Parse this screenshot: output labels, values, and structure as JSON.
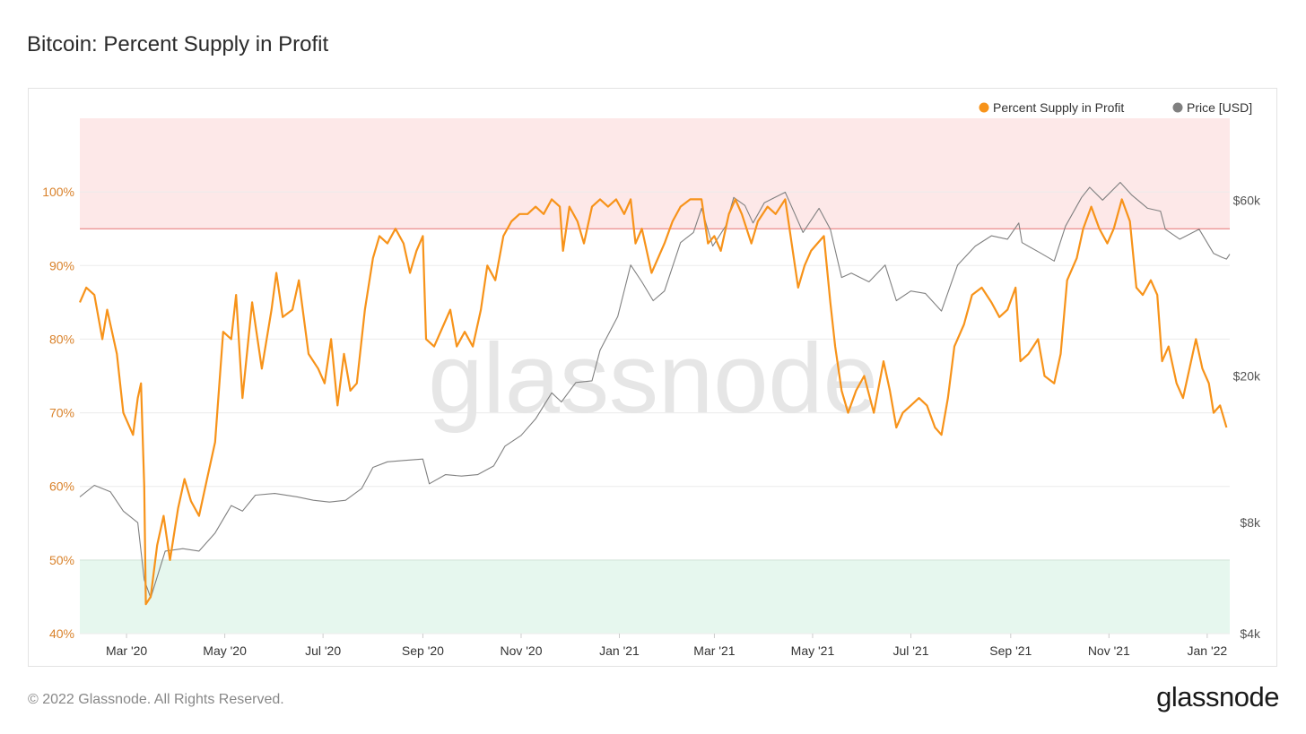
{
  "header": {
    "title": "Bitcoin: Percent Supply in Profit"
  },
  "footer": {
    "copyright": "© 2022 Glassnode. All Rights Reserved.",
    "logo_text": "glassnode"
  },
  "watermark": "glassnode",
  "colors": {
    "supply": "#f7931a",
    "price": "#808080",
    "upper_zone": "#fde8e8",
    "upper_line": "#e57373",
    "lower_zone": "#e6f7ee",
    "lower_line": "#66c28f"
  },
  "chart_data": {
    "type": "line",
    "title": "Bitcoin: Percent Supply in Profit",
    "legend": {
      "placement": "top-right",
      "entries": [
        "Percent Supply in Profit",
        "Price [USD]"
      ]
    },
    "x_range": [
      "2020-02-01",
      "2022-01-15"
    ],
    "x_ticks": [
      {
        "date": "2020-03-01",
        "label": "Mar '20"
      },
      {
        "date": "2020-05-01",
        "label": "May '20"
      },
      {
        "date": "2020-07-01",
        "label": "Jul '20"
      },
      {
        "date": "2020-09-01",
        "label": "Sep '20"
      },
      {
        "date": "2020-11-01",
        "label": "Nov '20"
      },
      {
        "date": "2021-01-01",
        "label": "Jan '21"
      },
      {
        "date": "2021-03-01",
        "label": "Mar '21"
      },
      {
        "date": "2021-05-01",
        "label": "May '21"
      },
      {
        "date": "2021-07-01",
        "label": "Jul '21"
      },
      {
        "date": "2021-09-01",
        "label": "Sep '21"
      },
      {
        "date": "2021-11-01",
        "label": "Nov '21"
      },
      {
        "date": "2022-01-01",
        "label": "Jan '22"
      }
    ],
    "y_left": {
      "range": [
        40,
        110
      ],
      "ticks": [
        40,
        50,
        60,
        70,
        80,
        90,
        100
      ],
      "tick_labels": [
        "40%",
        "50%",
        "60%",
        "70%",
        "80%",
        "90%",
        "100%"
      ]
    },
    "y_right": {
      "scale": "log",
      "range": [
        4000,
        100000
      ],
      "ticks": [
        4000,
        8000,
        20000,
        60000
      ],
      "tick_labels": [
        "$4k",
        "$8k",
        "$20k",
        "$60k"
      ]
    },
    "bands": [
      {
        "name": "upper",
        "from": 95,
        "to": 110
      },
      {
        "name": "lower",
        "from": 40,
        "to": 50
      }
    ],
    "grid": true,
    "series": [
      {
        "name": "Percent Supply in Profit",
        "axis": "left",
        "points": [
          [
            "2020-02-01",
            85
          ],
          [
            "2020-02-05",
            87
          ],
          [
            "2020-02-10",
            86
          ],
          [
            "2020-02-15",
            80
          ],
          [
            "2020-02-18",
            84
          ],
          [
            "2020-02-24",
            78
          ],
          [
            "2020-02-28",
            70
          ],
          [
            "2020-03-05",
            67
          ],
          [
            "2020-03-08",
            72
          ],
          [
            "2020-03-10",
            74
          ],
          [
            "2020-03-12",
            60
          ],
          [
            "2020-03-13",
            44
          ],
          [
            "2020-03-16",
            45
          ],
          [
            "2020-03-20",
            52
          ],
          [
            "2020-03-24",
            56
          ],
          [
            "2020-03-28",
            50
          ],
          [
            "2020-04-02",
            57
          ],
          [
            "2020-04-06",
            61
          ],
          [
            "2020-04-10",
            58
          ],
          [
            "2020-04-15",
            56
          ],
          [
            "2020-04-20",
            61
          ],
          [
            "2020-04-25",
            66
          ],
          [
            "2020-04-30",
            81
          ],
          [
            "2020-05-05",
            80
          ],
          [
            "2020-05-08",
            86
          ],
          [
            "2020-05-12",
            72
          ],
          [
            "2020-05-18",
            85
          ],
          [
            "2020-05-24",
            76
          ],
          [
            "2020-05-30",
            84
          ],
          [
            "2020-06-02",
            89
          ],
          [
            "2020-06-06",
            83
          ],
          [
            "2020-06-12",
            84
          ],
          [
            "2020-06-16",
            88
          ],
          [
            "2020-06-22",
            78
          ],
          [
            "2020-06-28",
            76
          ],
          [
            "2020-07-02",
            74
          ],
          [
            "2020-07-06",
            80
          ],
          [
            "2020-07-10",
            71
          ],
          [
            "2020-07-14",
            78
          ],
          [
            "2020-07-18",
            73
          ],
          [
            "2020-07-22",
            74
          ],
          [
            "2020-07-27",
            84
          ],
          [
            "2020-08-01",
            91
          ],
          [
            "2020-08-05",
            94
          ],
          [
            "2020-08-10",
            93
          ],
          [
            "2020-08-15",
            95
          ],
          [
            "2020-08-20",
            93
          ],
          [
            "2020-08-24",
            89
          ],
          [
            "2020-08-28",
            92
          ],
          [
            "2020-09-01",
            94
          ],
          [
            "2020-09-03",
            80
          ],
          [
            "2020-09-08",
            79
          ],
          [
            "2020-09-14",
            82
          ],
          [
            "2020-09-18",
            84
          ],
          [
            "2020-09-22",
            79
          ],
          [
            "2020-09-27",
            81
          ],
          [
            "2020-10-02",
            79
          ],
          [
            "2020-10-07",
            84
          ],
          [
            "2020-10-11",
            90
          ],
          [
            "2020-10-16",
            88
          ],
          [
            "2020-10-21",
            94
          ],
          [
            "2020-10-26",
            96
          ],
          [
            "2020-10-31",
            97
          ],
          [
            "2020-11-05",
            97
          ],
          [
            "2020-11-10",
            98
          ],
          [
            "2020-11-15",
            97
          ],
          [
            "2020-11-20",
            99
          ],
          [
            "2020-11-25",
            98
          ],
          [
            "2020-11-27",
            92
          ],
          [
            "2020-12-01",
            98
          ],
          [
            "2020-12-06",
            96
          ],
          [
            "2020-12-10",
            93
          ],
          [
            "2020-12-15",
            98
          ],
          [
            "2020-12-20",
            99
          ],
          [
            "2020-12-25",
            98
          ],
          [
            "2020-12-30",
            99
          ],
          [
            "2021-01-04",
            97
          ],
          [
            "2021-01-08",
            99
          ],
          [
            "2021-01-11",
            93
          ],
          [
            "2021-01-15",
            95
          ],
          [
            "2021-01-21",
            89
          ],
          [
            "2021-01-25",
            91
          ],
          [
            "2021-01-29",
            93
          ],
          [
            "2021-02-03",
            96
          ],
          [
            "2021-02-08",
            98
          ],
          [
            "2021-02-14",
            99
          ],
          [
            "2021-02-21",
            99
          ],
          [
            "2021-02-25",
            93
          ],
          [
            "2021-03-01",
            94
          ],
          [
            "2021-03-05",
            92
          ],
          [
            "2021-03-10",
            97
          ],
          [
            "2021-03-14",
            99
          ],
          [
            "2021-03-18",
            97
          ],
          [
            "2021-03-24",
            93
          ],
          [
            "2021-03-28",
            96
          ],
          [
            "2021-04-03",
            98
          ],
          [
            "2021-04-08",
            97
          ],
          [
            "2021-04-14",
            99
          ],
          [
            "2021-04-18",
            93
          ],
          [
            "2021-04-22",
            87
          ],
          [
            "2021-04-26",
            90
          ],
          [
            "2021-04-30",
            92
          ],
          [
            "2021-05-04",
            93
          ],
          [
            "2021-05-08",
            94
          ],
          [
            "2021-05-12",
            85
          ],
          [
            "2021-05-15",
            79
          ],
          [
            "2021-05-19",
            73
          ],
          [
            "2021-05-23",
            70
          ],
          [
            "2021-05-28",
            73
          ],
          [
            "2021-06-02",
            75
          ],
          [
            "2021-06-08",
            70
          ],
          [
            "2021-06-14",
            77
          ],
          [
            "2021-06-18",
            73
          ],
          [
            "2021-06-22",
            68
          ],
          [
            "2021-06-26",
            70
          ],
          [
            "2021-07-01",
            71
          ],
          [
            "2021-07-06",
            72
          ],
          [
            "2021-07-11",
            71
          ],
          [
            "2021-07-16",
            68
          ],
          [
            "2021-07-20",
            67
          ],
          [
            "2021-07-24",
            72
          ],
          [
            "2021-07-28",
            79
          ],
          [
            "2021-08-03",
            82
          ],
          [
            "2021-08-08",
            86
          ],
          [
            "2021-08-14",
            87
          ],
          [
            "2021-08-20",
            85
          ],
          [
            "2021-08-25",
            83
          ],
          [
            "2021-08-30",
            84
          ],
          [
            "2021-09-04",
            87
          ],
          [
            "2021-09-07",
            77
          ],
          [
            "2021-09-12",
            78
          ],
          [
            "2021-09-18",
            80
          ],
          [
            "2021-09-22",
            75
          ],
          [
            "2021-09-28",
            74
          ],
          [
            "2021-10-02",
            78
          ],
          [
            "2021-10-06",
            88
          ],
          [
            "2021-10-12",
            91
          ],
          [
            "2021-10-16",
            95
          ],
          [
            "2021-10-21",
            98
          ],
          [
            "2021-10-26",
            95
          ],
          [
            "2021-10-31",
            93
          ],
          [
            "2021-11-04",
            95
          ],
          [
            "2021-11-09",
            99
          ],
          [
            "2021-11-14",
            96
          ],
          [
            "2021-11-18",
            87
          ],
          [
            "2021-11-22",
            86
          ],
          [
            "2021-11-27",
            88
          ],
          [
            "2021-12-01",
            86
          ],
          [
            "2021-12-04",
            77
          ],
          [
            "2021-12-08",
            79
          ],
          [
            "2021-12-13",
            74
          ],
          [
            "2021-12-17",
            72
          ],
          [
            "2021-12-21",
            76
          ],
          [
            "2021-12-25",
            80
          ],
          [
            "2021-12-29",
            76
          ],
          [
            "2022-01-02",
            74
          ],
          [
            "2022-01-05",
            70
          ],
          [
            "2022-01-09",
            71
          ],
          [
            "2022-01-13",
            68
          ]
        ]
      },
      {
        "name": "Price [USD]",
        "axis": "right",
        "points": [
          [
            "2020-02-01",
            9400
          ],
          [
            "2020-02-10",
            10100
          ],
          [
            "2020-02-20",
            9700
          ],
          [
            "2020-02-28",
            8600
          ],
          [
            "2020-03-08",
            8000
          ],
          [
            "2020-03-12",
            5600
          ],
          [
            "2020-03-16",
            5000
          ],
          [
            "2020-03-25",
            6700
          ],
          [
            "2020-04-05",
            6800
          ],
          [
            "2020-04-15",
            6700
          ],
          [
            "2020-04-25",
            7500
          ],
          [
            "2020-05-05",
            8900
          ],
          [
            "2020-05-12",
            8600
          ],
          [
            "2020-05-20",
            9500
          ],
          [
            "2020-06-01",
            9600
          ],
          [
            "2020-06-15",
            9400
          ],
          [
            "2020-06-25",
            9200
          ],
          [
            "2020-07-05",
            9100
          ],
          [
            "2020-07-15",
            9200
          ],
          [
            "2020-07-25",
            9900
          ],
          [
            "2020-08-01",
            11300
          ],
          [
            "2020-08-10",
            11700
          ],
          [
            "2020-08-20",
            11800
          ],
          [
            "2020-09-01",
            11900
          ],
          [
            "2020-09-05",
            10200
          ],
          [
            "2020-09-15",
            10800
          ],
          [
            "2020-09-25",
            10700
          ],
          [
            "2020-10-05",
            10800
          ],
          [
            "2020-10-15",
            11400
          ],
          [
            "2020-10-22",
            12900
          ],
          [
            "2020-11-01",
            13800
          ],
          [
            "2020-11-10",
            15300
          ],
          [
            "2020-11-20",
            18000
          ],
          [
            "2020-11-26",
            17000
          ],
          [
            "2020-12-05",
            19200
          ],
          [
            "2020-12-15",
            19400
          ],
          [
            "2020-12-20",
            23500
          ],
          [
            "2020-12-31",
            29000
          ],
          [
            "2021-01-08",
            40000
          ],
          [
            "2021-01-15",
            36000
          ],
          [
            "2021-01-22",
            32000
          ],
          [
            "2021-01-29",
            34000
          ],
          [
            "2021-02-08",
            46000
          ],
          [
            "2021-02-16",
            49000
          ],
          [
            "2021-02-21",
            57000
          ],
          [
            "2021-02-28",
            45000
          ],
          [
            "2021-03-08",
            51000
          ],
          [
            "2021-03-13",
            61000
          ],
          [
            "2021-03-20",
            58000
          ],
          [
            "2021-03-25",
            52000
          ],
          [
            "2021-04-01",
            59000
          ],
          [
            "2021-04-14",
            63000
          ],
          [
            "2021-04-20",
            55000
          ],
          [
            "2021-04-25",
            49000
          ],
          [
            "2021-05-05",
            57000
          ],
          [
            "2021-05-12",
            50000
          ],
          [
            "2021-05-19",
            37000
          ],
          [
            "2021-05-25",
            38000
          ],
          [
            "2021-06-05",
            36000
          ],
          [
            "2021-06-15",
            40000
          ],
          [
            "2021-06-22",
            32000
          ],
          [
            "2021-07-01",
            34000
          ],
          [
            "2021-07-10",
            33500
          ],
          [
            "2021-07-20",
            30000
          ],
          [
            "2021-07-30",
            40000
          ],
          [
            "2021-08-10",
            45000
          ],
          [
            "2021-08-20",
            48000
          ],
          [
            "2021-08-30",
            47000
          ],
          [
            "2021-09-06",
            52000
          ],
          [
            "2021-09-08",
            46000
          ],
          [
            "2021-09-20",
            43000
          ],
          [
            "2021-09-28",
            41000
          ],
          [
            "2021-10-05",
            51000
          ],
          [
            "2021-10-15",
            61000
          ],
          [
            "2021-10-20",
            65000
          ],
          [
            "2021-10-28",
            60000
          ],
          [
            "2021-11-08",
            67000
          ],
          [
            "2021-11-15",
            62000
          ],
          [
            "2021-11-25",
            57000
          ],
          [
            "2021-12-03",
            56000
          ],
          [
            "2021-12-06",
            50000
          ],
          [
            "2021-12-15",
            47000
          ],
          [
            "2021-12-27",
            50000
          ],
          [
            "2022-01-05",
            43000
          ],
          [
            "2022-01-10",
            42000
          ],
          [
            "2022-01-13",
            41500
          ],
          [
            "2022-01-15",
            42800
          ]
        ]
      }
    ]
  }
}
